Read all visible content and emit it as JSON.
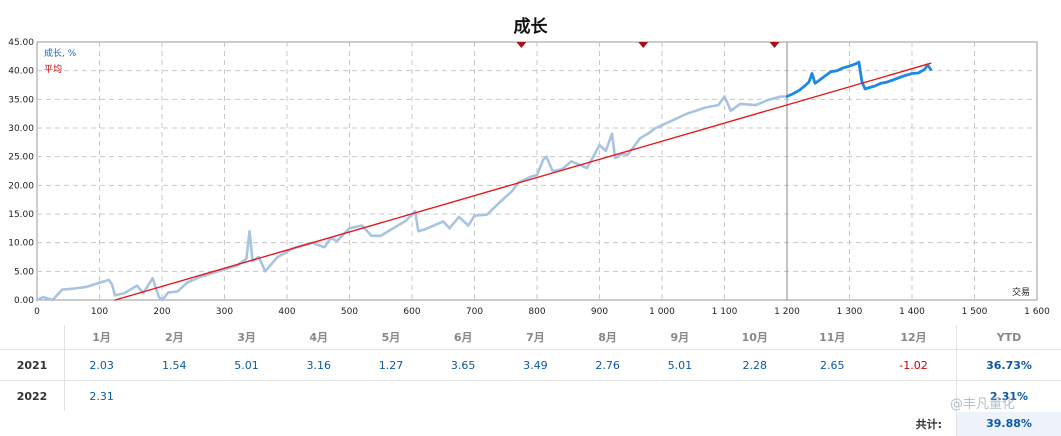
{
  "chart_data": {
    "type": "line",
    "title": "成长",
    "xlabel": "交易",
    "ylabel": "成长, %",
    "legend": [
      "成长, %",
      "平均"
    ],
    "xlim": [
      0,
      1600
    ],
    "ylim": [
      0,
      45
    ],
    "xticks": [
      "0",
      "100",
      "200",
      "300",
      "400",
      "500",
      "600",
      "700",
      "800",
      "900",
      "1 000",
      "1 100",
      "1 200",
      "1 300",
      "1 400",
      "1 500",
      "1 600"
    ],
    "yticks": [
      "0.00",
      "5.00",
      "10.00",
      "15.00",
      "20.00",
      "25.00",
      "30.00",
      "35.00",
      "40.00",
      "45.00"
    ],
    "grid": true,
    "split_x": 1200,
    "markers_x": [
      775,
      970,
      1180
    ],
    "series": [
      {
        "name": "成长, %",
        "color": "#a9c4e2",
        "x": [
          0,
          10,
          25,
          40,
          60,
          80,
          100,
          115,
          120,
          125,
          140,
          160,
          170,
          185,
          195,
          200,
          210,
          225,
          240,
          260,
          290,
          320,
          335,
          340,
          345,
          355,
          365,
          385,
          410,
          440,
          460,
          470,
          480,
          500,
          520,
          535,
          550,
          570,
          590,
          605,
          610,
          620,
          650,
          660,
          675,
          690,
          700,
          720,
          740,
          755,
          760,
          770,
          790,
          800,
          810,
          815,
          825,
          840,
          855,
          880,
          900,
          910,
          920,
          925,
          930,
          935,
          945,
          965,
          980,
          990,
          1010,
          1040,
          1070,
          1090,
          1100,
          1110,
          1125,
          1150,
          1170,
          1190,
          1200
        ],
        "y": [
          0,
          0.5,
          0,
          1.8,
          2,
          2.3,
          3.0,
          3.5,
          2.7,
          0.8,
          1.2,
          2.5,
          1.2,
          3.8,
          0.5,
          0,
          1.3,
          1.5,
          3,
          4,
          5,
          6,
          7.2,
          12,
          6.8,
          7.5,
          5,
          7.5,
          9,
          10,
          9.2,
          10.8,
          10.3,
          12.5,
          13,
          11.2,
          11.2,
          12.5,
          13.8,
          15.5,
          12.0,
          12.3,
          13.7,
          12.5,
          14.5,
          13.0,
          14.7,
          14.9,
          17,
          18.5,
          19,
          20.5,
          21.5,
          21.8,
          24.5,
          25.0,
          22.5,
          22.8,
          24.2,
          23.0,
          27,
          26,
          29,
          24.8,
          25.0,
          25.5,
          25.3,
          28.2,
          29.2,
          30.0,
          31.0,
          32.5,
          33.6,
          34.0,
          35.5,
          33.0,
          34.2,
          34.0,
          34.9,
          35.5,
          35.5
        ]
      },
      {
        "name": "成长, % (recent)",
        "color": "#1e88e5",
        "x": [
          1200,
          1210,
          1220,
          1230,
          1235,
          1240,
          1245,
          1250,
          1260,
          1270,
          1280,
          1290,
          1300,
          1310,
          1315,
          1320,
          1325,
          1330,
          1340,
          1350,
          1360,
          1370,
          1380,
          1390,
          1400,
          1410,
          1420,
          1425,
          1430
        ],
        "y": [
          35.5,
          36.0,
          36.6,
          37.5,
          38,
          39.5,
          37.8,
          38.2,
          39,
          39.8,
          40,
          40.5,
          40.8,
          41.2,
          41.5,
          38,
          36.8,
          37,
          37.3,
          37.8,
          38.0,
          38.4,
          38.8,
          39.2,
          39.5,
          39.6,
          40.2,
          41,
          40.2
        ]
      },
      {
        "name": "平均",
        "color": "#e41a1c",
        "x": [
          125,
          1430
        ],
        "y": [
          0,
          41.3
        ]
      }
    ]
  },
  "table": {
    "month_headers": [
      "1月",
      "2月",
      "3月",
      "4月",
      "5月",
      "6月",
      "7月",
      "8月",
      "9月",
      "10月",
      "11月",
      "12月"
    ],
    "ytd_header": "YTD",
    "rows": [
      {
        "year": "2021",
        "values": [
          "2.03",
          "1.54",
          "5.01",
          "3.16",
          "1.27",
          "3.65",
          "3.49",
          "2.76",
          "5.01",
          "2.28",
          "2.65",
          "-1.02"
        ],
        "ytd": "36.73%"
      },
      {
        "year": "2022",
        "values": [
          "2.31",
          "",
          "",
          "",
          "",
          "",
          "",
          "",
          "",
          "",
          "",
          ""
        ],
        "ytd": "2.31%"
      }
    ],
    "total_label": "共计:",
    "total_value": "39.88%"
  },
  "watermark": "@丰凡量化"
}
